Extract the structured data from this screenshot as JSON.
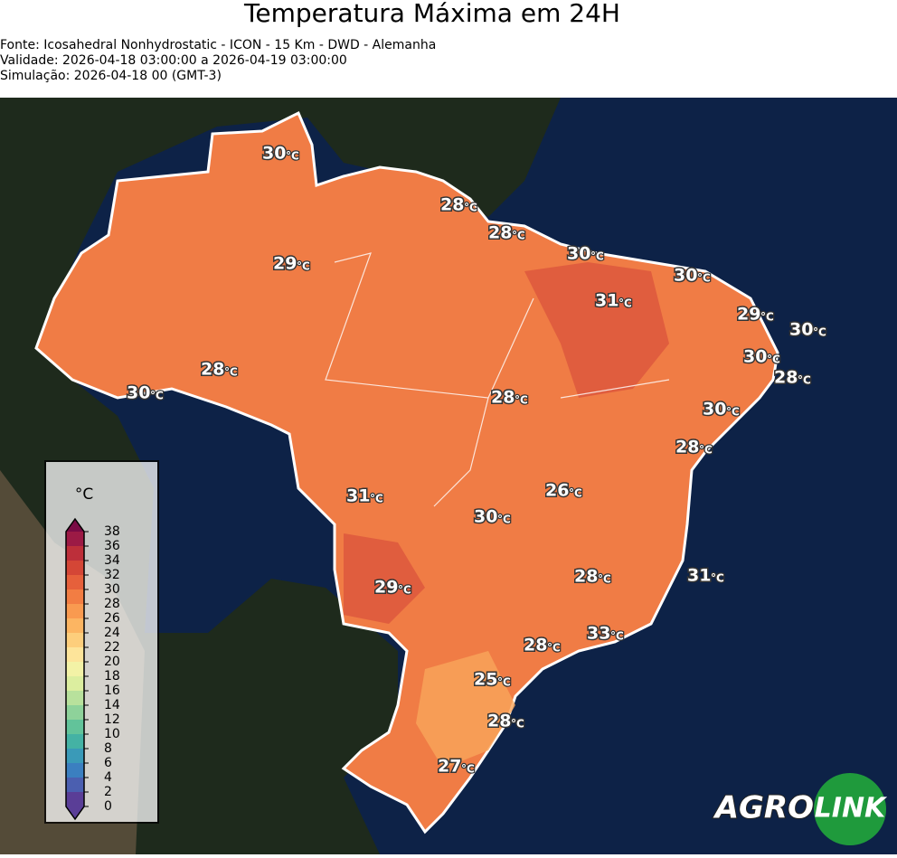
{
  "header": {
    "title": "Temperatura Máxima em 24H",
    "lines": [
      "Fonte: Icosahedral Nonhydrostatic - ICON - 15 Km - DWD - Alemanha",
      "Validade: 2026-04-18 03:00:00 a 2026-04-19 03:00:00",
      "Simulação: 2026-04-18 00 (GMT-3)"
    ]
  },
  "unit": "°C",
  "labels": [
    30,
    28,
    28,
    30,
    29,
    31,
    30,
    29,
    30,
    30,
    28,
    28,
    30,
    28,
    30,
    28,
    26,
    31,
    30,
    28,
    31,
    29,
    33,
    28,
    25,
    28,
    27
  ],
  "colorbar": {
    "title": "°C",
    "ticks": [
      0,
      2,
      4,
      6,
      8,
      10,
      12,
      14,
      16,
      18,
      20,
      22,
      24,
      26,
      28,
      30,
      32,
      34,
      36,
      38
    ],
    "colors": [
      "#5a3e97",
      "#4b5fb0",
      "#3b7fc0",
      "#3a9ab8",
      "#44b2a4",
      "#62c39a",
      "#8ed29a",
      "#b8e19c",
      "#dcee9f",
      "#f3f2a6",
      "#fde49a",
      "#fdce7c",
      "#fcb562",
      "#f99a50",
      "#f27d43",
      "#e6603b",
      "#d44636",
      "#bd2f3a",
      "#9c1a45",
      "#7a0b45"
    ]
  },
  "logo": {
    "left": "AGRO",
    "right": "LINK"
  }
}
